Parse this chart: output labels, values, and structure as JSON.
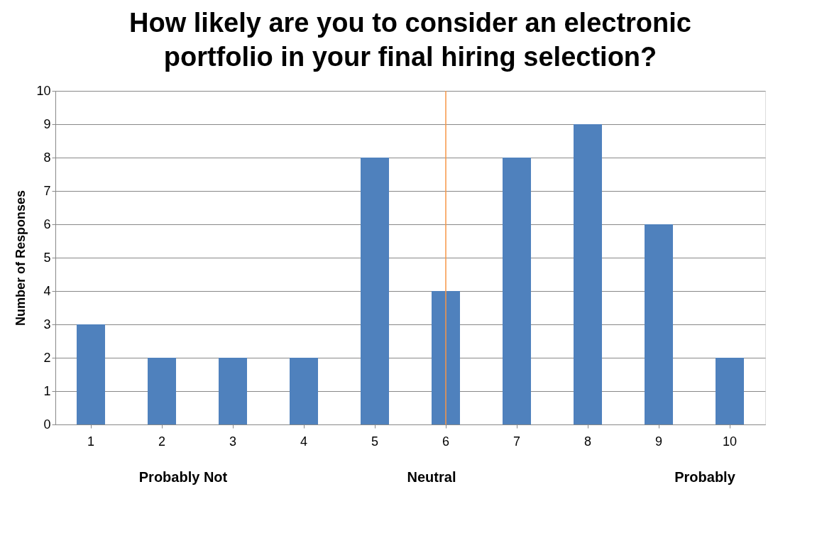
{
  "chart_data": {
    "type": "bar",
    "title": "How likely are you to consider an electronic portfolio in your final hiring selection?",
    "ylabel": "Number of Responses",
    "categories": [
      "1",
      "2",
      "3",
      "4",
      "5",
      "6",
      "7",
      "8",
      "9",
      "10"
    ],
    "values": [
      3,
      2,
      2,
      2,
      8,
      4,
      8,
      9,
      6,
      2
    ],
    "color": "#4f81bd",
    "ylim": [
      0,
      10
    ],
    "yticks": [
      0,
      1,
      2,
      3,
      4,
      5,
      6,
      7,
      8,
      9,
      10
    ],
    "grid": "y",
    "ref_lines": [
      {
        "axis": "x",
        "value": "6",
        "color": "#f79646"
      }
    ],
    "annotations": [
      "Probably Not",
      "Neutral",
      "Probably"
    ]
  }
}
